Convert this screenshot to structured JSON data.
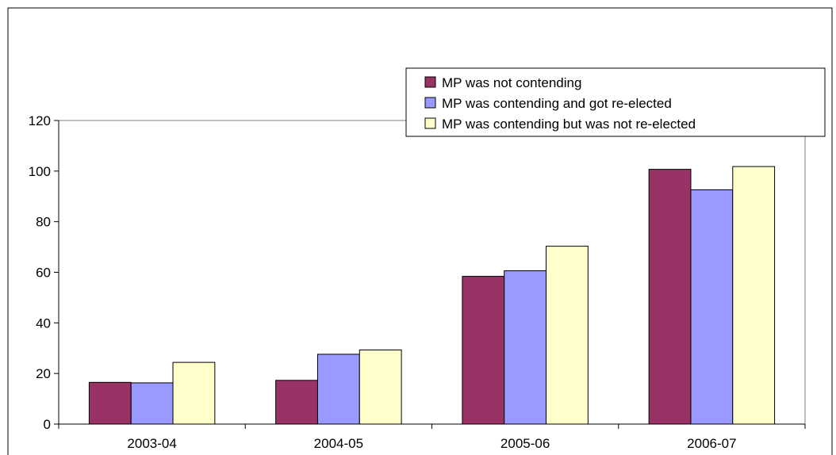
{
  "chart_data": {
    "type": "bar",
    "title": "",
    "xlabel": "",
    "ylabel": "",
    "categories": [
      "2003-04",
      "2004-05",
      "2005-06",
      "2006-07"
    ],
    "ylim": [
      0,
      120
    ],
    "yticks": [
      0,
      20,
      40,
      60,
      80,
      100,
      120
    ],
    "grid": false,
    "legend_position": "top-right",
    "series": [
      {
        "name": "MP was not contending",
        "color": "#993366",
        "values": [
          16.5,
          17.3,
          58.4,
          100.7
        ]
      },
      {
        "name": "MP was contending and got re-elected",
        "color": "#9999ff",
        "values": [
          16.3,
          27.6,
          60.6,
          92.6
        ]
      },
      {
        "name": "MP was contending but was not re-elected",
        "color": "#ffffcc",
        "values": [
          24.4,
          29.3,
          70.3,
          101.8
        ]
      }
    ]
  }
}
